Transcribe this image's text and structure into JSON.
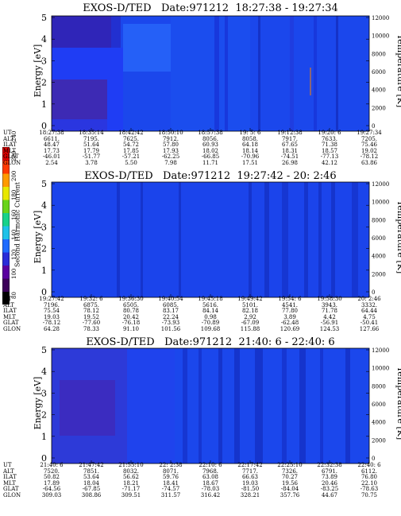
{
  "colorbar": {
    "label": "Second Harmonic Current",
    "ticks": [
      "80",
      "100",
      "120",
      "140",
      "160",
      "180",
      "200",
      "220",
      "240"
    ],
    "colors": [
      "#000000",
      "#3c005a",
      "#5a00a0",
      "#2a2cd8",
      "#1f6bff",
      "#1fc2e8",
      "#19d28a",
      "#6ad41a",
      "#e8e800",
      "#ff9a00",
      "#ff3a00",
      "#e00000"
    ]
  },
  "panels": [
    {
      "title": "EXOS-D/TED   Date:971212  18:27:38 - 19:27:34",
      "ylabel": "Energy [eV]",
      "y2label": "Temperature [K]",
      "yticks": [
        "0",
        "1",
        "2",
        "3",
        "4",
        "5"
      ],
      "y2ticks": [
        "0",
        "2000",
        "4000",
        "6000",
        "8000",
        "10000",
        "12000"
      ],
      "rows": [
        {
          "label": "UT",
          "values": [
            "18:27:38",
            "18:35:14",
            "18:42:42",
            "18:50:10",
            "18:57:38",
            "19: 5: 6",
            "19:12:38",
            "19:20: 6",
            "19:27:34"
          ]
        },
        {
          "label": "ALT",
          "values": [
            "6611.",
            "7195.",
            "7625.",
            "7912.",
            "8056.",
            "8058.",
            "7917.",
            "7633.",
            "7205."
          ]
        },
        {
          "label": "ILAT",
          "values": [
            "48.47",
            "51.64",
            "54.72",
            "57.80",
            "60.93",
            "64.18",
            "67.65",
            "71.38",
            "75.46"
          ]
        },
        {
          "label": "MLT",
          "values": [
            "17.73",
            "17.79",
            "17.85",
            "17.93",
            "18.02",
            "18.14",
            "18.31",
            "18.57",
            "19.02"
          ]
        },
        {
          "label": "GLAT",
          "values": [
            "-46.01",
            "-51.77",
            "-57.21",
            "-62.25",
            "-66.85",
            "-70.96",
            "-74.51",
            "-77.13",
            "-78.12"
          ]
        },
        {
          "label": "GLON",
          "values": [
            "2.54",
            "3.78",
            "5.50",
            "7.98",
            "11.71",
            "17.51",
            "26.98",
            "42.12",
            "63.86"
          ]
        }
      ]
    },
    {
      "title": "EXOS-D/TED   Date:971212  19:27:42 - 20: 2:46",
      "ylabel": "Energy [eV]",
      "y2label": "Temperature [K]",
      "yticks": [
        "0",
        "1",
        "2",
        "3",
        "4",
        "5"
      ],
      "y2ticks": [
        "0",
        "2000",
        "4000",
        "6000",
        "8000",
        "10000",
        "12000"
      ],
      "rows": [
        {
          "label": "UT",
          "values": [
            "19:27:42",
            "19:32: 6",
            "19:36:30",
            "19:40:54",
            "19:45:18",
            "19:49:42",
            "19:54: 6",
            "19:58:30",
            "20: 2:46"
          ]
        },
        {
          "label": "ALT",
          "values": [
            "7196.",
            "6875.",
            "6505.",
            "6085.",
            "5616.",
            "5101.",
            "4541.",
            "3943.",
            "3332."
          ]
        },
        {
          "label": "ILAT",
          "values": [
            "75.54",
            "78.12",
            "80.78",
            "83.17",
            "84.14",
            "82.18",
            "77.80",
            "71.78",
            "64.44"
          ]
        },
        {
          "label": "MLT",
          "values": [
            "19.03",
            "19.52",
            "20.42",
            "22.24",
            "0.98",
            "2.92",
            "3.89",
            "4.42",
            "4.75"
          ]
        },
        {
          "label": "GLAT",
          "values": [
            "-78.12",
            "-77.60",
            "-76.18",
            "-73.93",
            "-70.89",
            "-67.09",
            "-62.48",
            "-56.91",
            "-50.41"
          ]
        },
        {
          "label": "GLON",
          "values": [
            "64.28",
            "78.33",
            "91.10",
            "101.56",
            "109.68",
            "115.88",
            "120.69",
            "124.53",
            "127.66"
          ]
        }
      ]
    },
    {
      "title": "EXOS-D/TED   Date:971212  21:40: 6 - 22:40: 6",
      "ylabel": "Energy [eV]",
      "y2label": "Temperature [K]",
      "yticks": [
        "0",
        "1",
        "2",
        "3",
        "4",
        "5"
      ],
      "y2ticks": [
        "0",
        "2000",
        "4000",
        "6000",
        "8000",
        "10000",
        "12000"
      ],
      "rows": [
        {
          "label": "UT",
          "values": [
            "21:40: 6",
            "21:47:42",
            "21:55:10",
            "22: 2:38",
            "22:10: 6",
            "22:17:42",
            "22:25:10",
            "22:32:38",
            "22:40: 6"
          ]
        },
        {
          "label": "ALT",
          "values": [
            "7520.",
            "7851.",
            "8032.",
            "8071.",
            "7968.",
            "7717.",
            "7326.",
            "6791.",
            "6112."
          ]
        },
        {
          "label": "ILAT",
          "values": [
            "50.82",
            "53.64",
            "56.62",
            "59.76",
            "63.08",
            "66.63",
            "70.27",
            "73.89",
            "76.80"
          ]
        },
        {
          "label": "MLT",
          "values": [
            "17.89",
            "18.04",
            "18.21",
            "18.41",
            "18.67",
            "19.03",
            "19.56",
            "20.46",
            "22.10"
          ]
        },
        {
          "label": "GLAT",
          "values": [
            "-64.56",
            "-67.85",
            "-71.17",
            "-74.57",
            "-78.03",
            "-81.50",
            "-84.04",
            "-83.25",
            "-78.63"
          ]
        },
        {
          "label": "GLON",
          "values": [
            "309.03",
            "308.86",
            "309.51",
            "311.57",
            "316.42",
            "328.21",
            "357.76",
            "44.67",
            "70.75"
          ]
        }
      ]
    }
  ],
  "chart_data": [
    {
      "type": "heatmap",
      "title": "EXOS-D/TED   Date:971212  18:27:38 - 19:27:34",
      "ylabel": "Energy [eV]",
      "y2label": "Temperature [K]",
      "ylim": [
        0,
        5
      ],
      "y2lim": [
        0,
        12000
      ],
      "x": [
        "18:27:38",
        "18:35:14",
        "18:42:42",
        "18:50:10",
        "18:57:38",
        "19: 5: 6",
        "19:12:38",
        "19:20: 6",
        "19:27:34"
      ],
      "z_label": "Second Harmonic Current",
      "zlim": [
        80,
        240
      ]
    },
    {
      "type": "heatmap",
      "title": "EXOS-D/TED   Date:971212  19:27:42 - 20: 2:46",
      "ylabel": "Energy [eV]",
      "y2label": "Temperature [K]",
      "ylim": [
        0,
        5
      ],
      "y2lim": [
        0,
        12000
      ],
      "x": [
        "19:27:42",
        "19:32: 6",
        "19:36:30",
        "19:40:54",
        "19:45:18",
        "19:49:42",
        "19:54: 6",
        "19:58:30",
        "20: 2:46"
      ],
      "z_label": "Second Harmonic Current",
      "zlim": [
        80,
        240
      ]
    },
    {
      "type": "heatmap",
      "title": "EXOS-D/TED   Date:971212  21:40: 6 - 22:40: 6",
      "ylabel": "Energy [eV]",
      "y2label": "Temperature [K]",
      "ylim": [
        0,
        5
      ],
      "y2lim": [
        0,
        12000
      ],
      "x": [
        "21:40: 6",
        "21:47:42",
        "21:55:10",
        "22: 2:38",
        "22:10: 6",
        "22:17:42",
        "22:25:10",
        "22:32:38",
        "22:40: 6"
      ],
      "z_label": "Second Harmonic Current",
      "zlim": [
        80,
        240
      ]
    }
  ]
}
